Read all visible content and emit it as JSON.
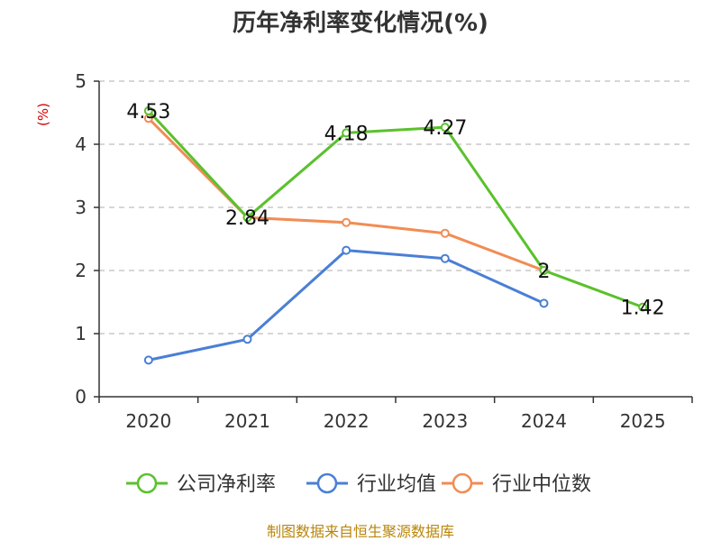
{
  "chart_data": {
    "type": "line",
    "title": "历年净利率变化情况(%)",
    "ylabel": "(%)",
    "xlabel": "",
    "categories": [
      "2020",
      "2021",
      "2022",
      "2023",
      "2024",
      "2025"
    ],
    "yticks": [
      "0",
      "1",
      "2",
      "3",
      "4",
      "5"
    ],
    "ylim": [
      0,
      5
    ],
    "grid": true,
    "legend_position": "bottom",
    "series": [
      {
        "name": "公司净利率",
        "color": "#5ac12c",
        "values": [
          4.53,
          2.84,
          4.18,
          4.27,
          2.0,
          1.42
        ],
        "labels": [
          "4.53",
          "2.84",
          "4.18",
          "4.27",
          "2",
          "1.42"
        ]
      },
      {
        "name": "行业均值",
        "color": "#4a7fd6",
        "values": [
          0.58,
          0.91,
          2.32,
          2.19,
          1.48,
          null
        ]
      },
      {
        "name": "行业中位数",
        "color": "#f28c54",
        "values": [
          4.41,
          2.84,
          2.76,
          2.59,
          2.0,
          null
        ]
      }
    ]
  },
  "source": "制图数据来自恒生聚源数据库"
}
